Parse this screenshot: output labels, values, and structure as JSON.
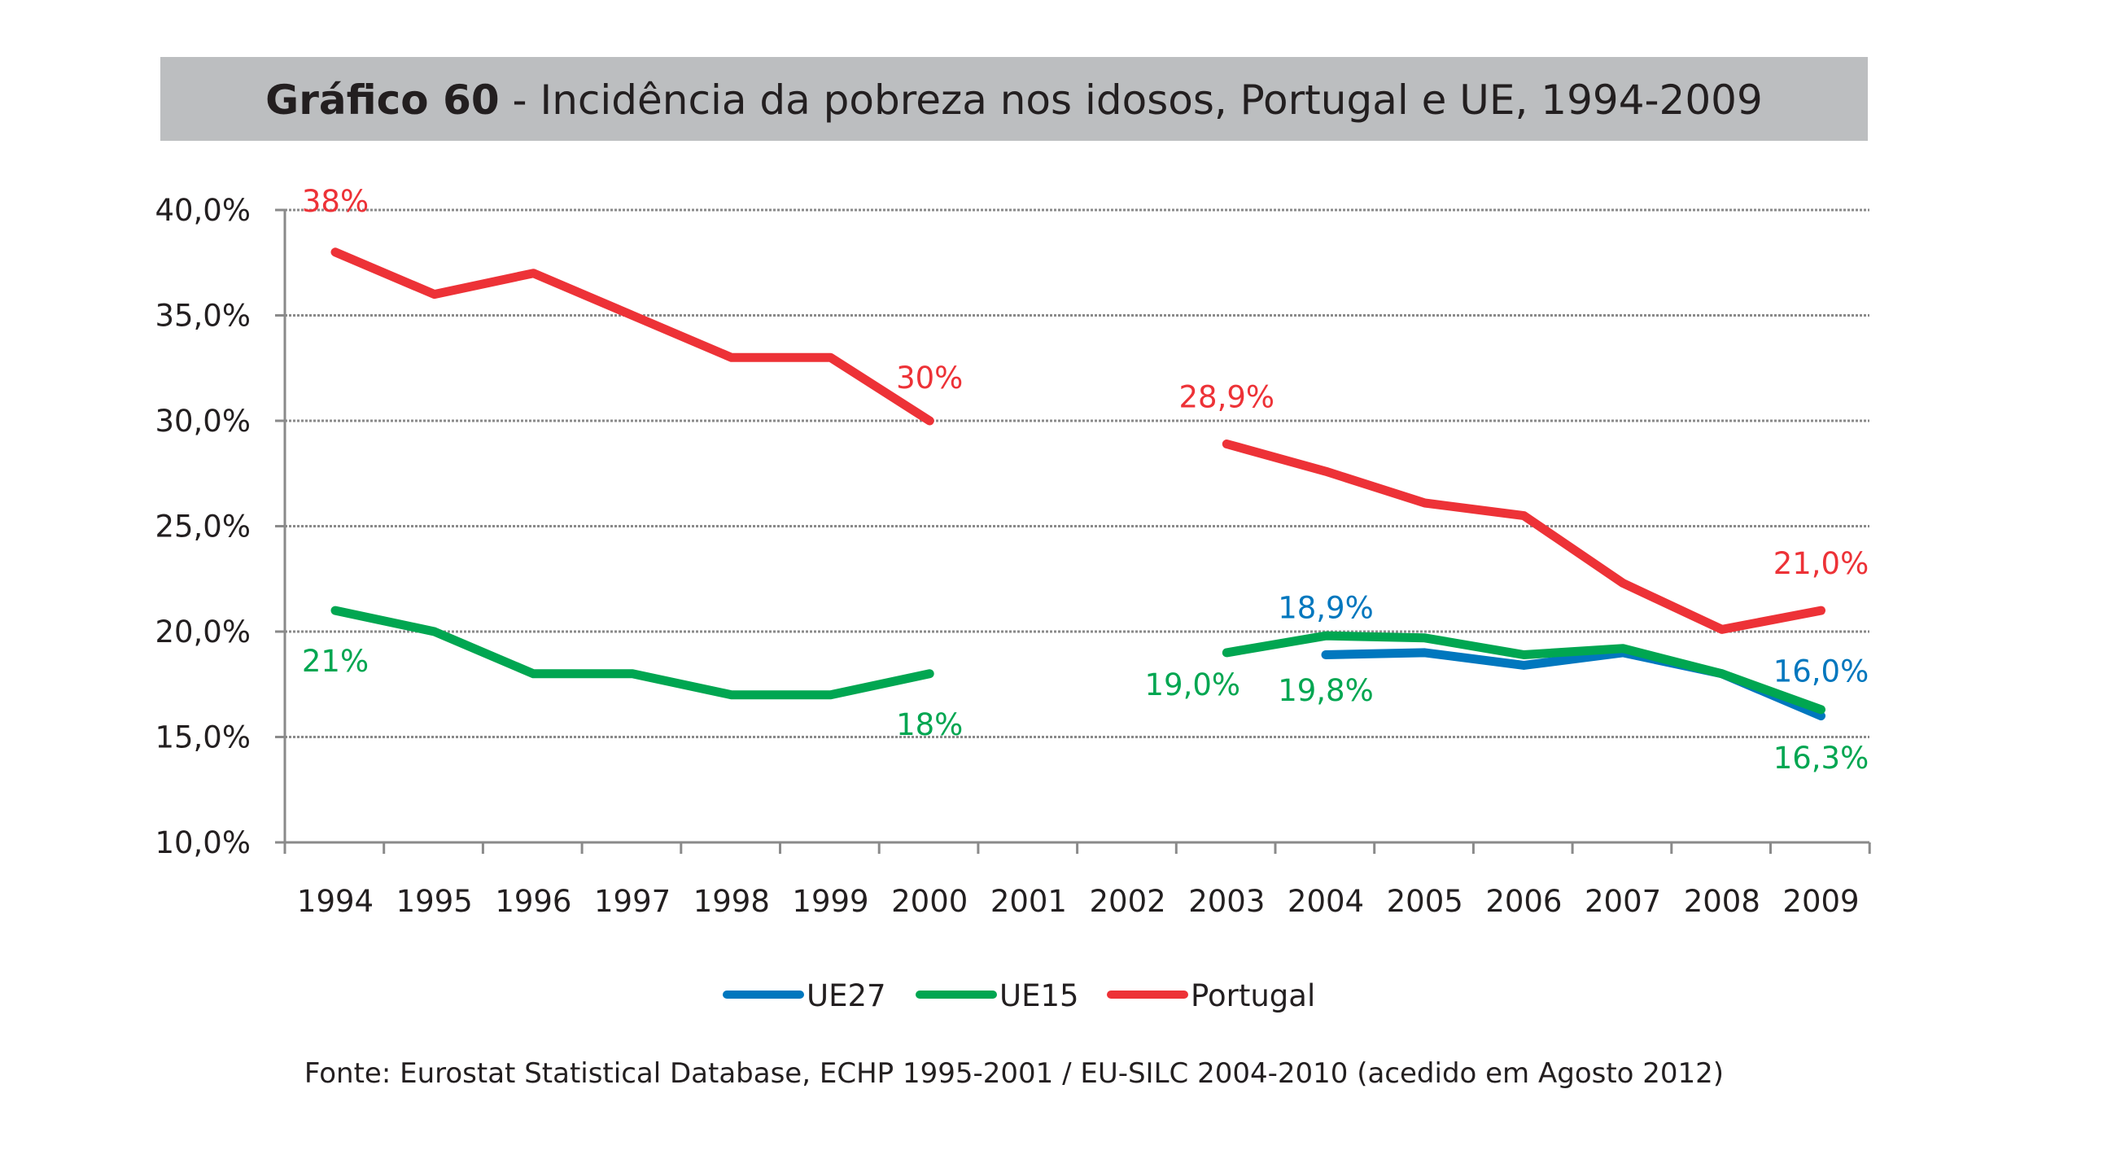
{
  "chart_data": {
    "type": "line",
    "title_bold": "Gráfico 60",
    "title_rest": " - Incidência da pobreza nos idosos, Portugal e UE, 1994-2009",
    "x": [
      "1994",
      "1995",
      "1996",
      "1997",
      "1998",
      "1999",
      "2000",
      "2001",
      "2002",
      "2003",
      "2004",
      "2005",
      "2006",
      "2007",
      "2008",
      "2009"
    ],
    "ylim": [
      10,
      40
    ],
    "yticks": [
      "10,0%",
      "15,0%",
      "20,0%",
      "25,0%",
      "30,0%",
      "35,0%",
      "40,0%"
    ],
    "grid": true,
    "legend_position": "bottom",
    "series": [
      {
        "name": "UE27",
        "color": "#0077be",
        "values": [
          null,
          null,
          null,
          null,
          null,
          null,
          null,
          null,
          null,
          null,
          18.9,
          19.0,
          18.4,
          19.0,
          18.0,
          16.0
        ]
      },
      {
        "name": "UE15",
        "color": "#00a651",
        "values": [
          21,
          20,
          18,
          18,
          17,
          17,
          18,
          null,
          null,
          19.0,
          19.8,
          19.7,
          18.9,
          19.2,
          18.0,
          16.3
        ]
      },
      {
        "name": "Portugal",
        "color": "#ed3237",
        "values": [
          38,
          36,
          37,
          35,
          33,
          33,
          30,
          null,
          null,
          28.9,
          27.6,
          26.1,
          25.5,
          22.3,
          20.1,
          21.0
        ]
      }
    ],
    "annotations": [
      {
        "series": "Portugal",
        "year": "1994",
        "text": "38%"
      },
      {
        "series": "Portugal",
        "year": "2000",
        "text": "30%"
      },
      {
        "series": "Portugal",
        "year": "2003",
        "text": "28,9%"
      },
      {
        "series": "Portugal",
        "year": "2009",
        "text": "21,0%"
      },
      {
        "series": "UE15",
        "year": "1994",
        "text": "21%"
      },
      {
        "series": "UE15",
        "year": "2000",
        "text": "18%"
      },
      {
        "series": "UE15",
        "year": "2003",
        "text": "19,0%"
      },
      {
        "series": "UE15",
        "year": "2004",
        "text": "19,8%"
      },
      {
        "series": "UE15",
        "year": "2009",
        "text": "16,3%"
      },
      {
        "series": "UE27",
        "year": "2004",
        "text": "18,9%"
      },
      {
        "series": "UE27",
        "year": "2009",
        "text": "16,0%"
      }
    ],
    "source": "Fonte: Eurostat Statistical Database, ECHP 1995-2001 / EU-SILC 2004-2010 (acedido em Agosto 2012)",
    "title_bg": "#bcbec0"
  }
}
